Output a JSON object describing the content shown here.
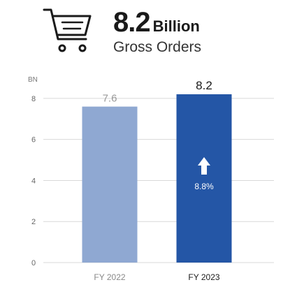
{
  "header": {
    "icon": "shopping-cart-icon",
    "value": "8.2",
    "unit": "Billion",
    "subtitle": "Gross Orders"
  },
  "chart_data": {
    "type": "bar",
    "ylabel": "BN",
    "ylim": [
      0,
      8.2
    ],
    "yticks": [
      0,
      2,
      4,
      6,
      8
    ],
    "grid": true,
    "categories": [
      "FY 2022",
      "FY 2023"
    ],
    "values": [
      7.6,
      8.2
    ],
    "value_labels": [
      "7.6",
      "8.2"
    ],
    "colors": [
      "#8fa8d2",
      "#2456a6"
    ],
    "annotation": {
      "category": "FY 2023",
      "icon": "arrow-up-icon",
      "text": "8.8%"
    }
  }
}
